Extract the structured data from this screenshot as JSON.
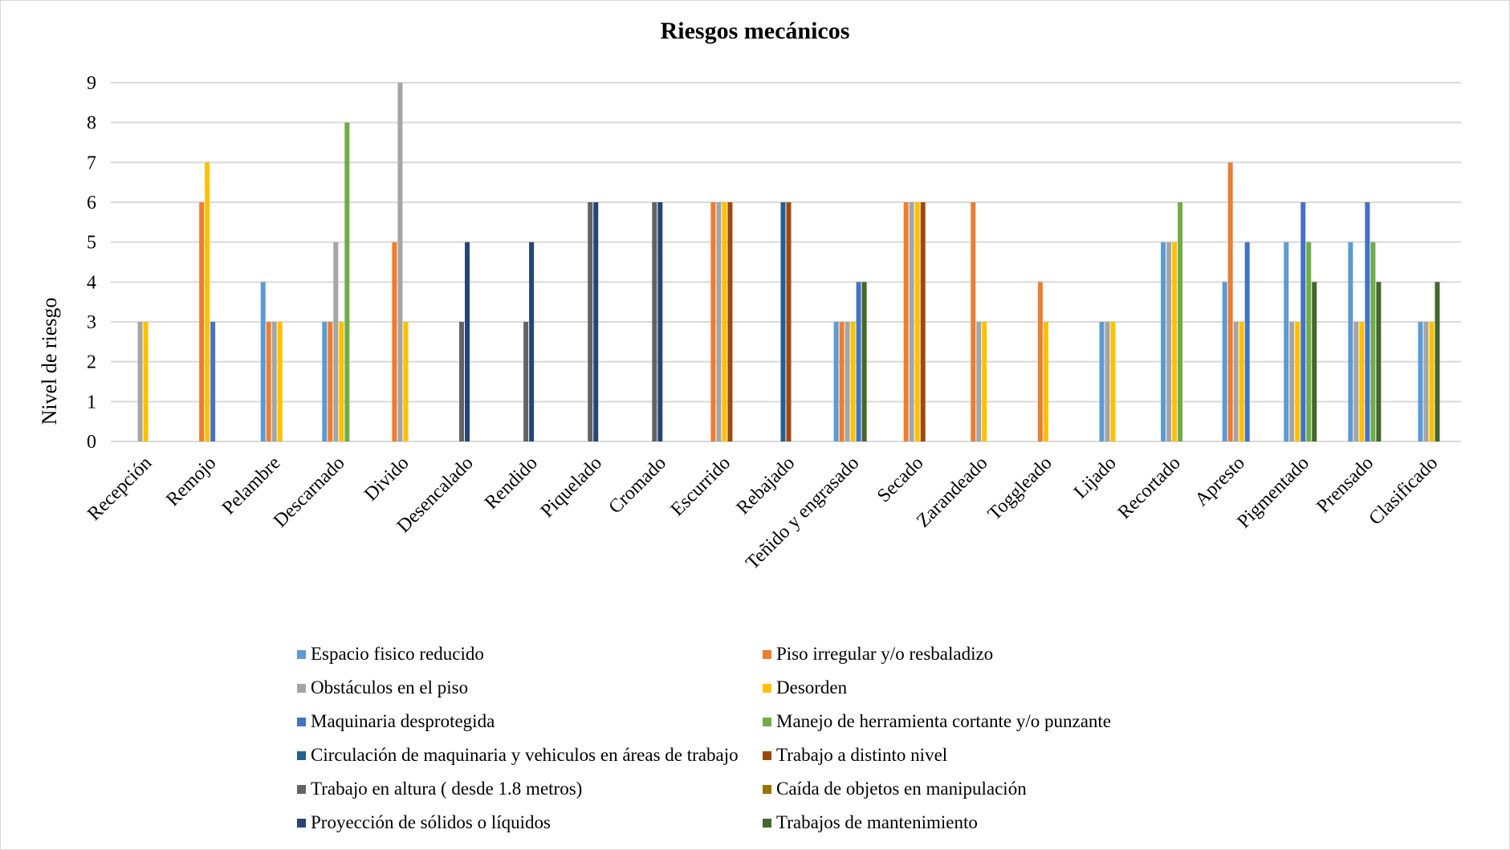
{
  "chart_data": {
    "type": "bar",
    "title": "Riesgos mecánicos",
    "xlabel": "",
    "ylabel": "Nivel de riesgo",
    "ylim": [
      0,
      9
    ],
    "yticks": [
      0,
      1,
      2,
      3,
      4,
      5,
      6,
      7,
      8,
      9
    ],
    "grid": true,
    "legend_position": "bottom",
    "categories": [
      "Recepción",
      "Remojo",
      "Pelambre",
      "Descarnado",
      "Divido",
      "Desencalado",
      "Rendido",
      "Piquelado",
      "Cromado",
      "Escurrido",
      "Rebajado",
      "Teñido y engrasado",
      "Secado",
      "Zarandeado",
      "Toggleado",
      "Lijado",
      "Recortado",
      "Apresto",
      "Pigmentado",
      "Prensado",
      "Clasificado"
    ],
    "series": [
      {
        "name": "Espacio fisico reducido",
        "color": "#5b9bd5",
        "values": [
          0,
          0,
          4,
          3,
          0,
          0,
          0,
          0,
          0,
          0,
          0,
          3,
          0,
          0,
          0,
          3,
          5,
          4,
          5,
          5,
          3
        ]
      },
      {
        "name": "Piso irregular y/o resbaladizo",
        "color": "#ed7d31",
        "values": [
          0,
          6,
          3,
          3,
          5,
          0,
          0,
          0,
          0,
          6,
          0,
          3,
          6,
          6,
          4,
          0,
          0,
          7,
          0,
          0,
          0
        ]
      },
      {
        "name": "Obstáculos en el piso",
        "color": "#a5a5a5",
        "values": [
          3,
          0,
          3,
          5,
          9,
          0,
          0,
          0,
          0,
          6,
          0,
          3,
          6,
          3,
          0,
          3,
          5,
          3,
          3,
          3,
          3
        ]
      },
      {
        "name": "Desorden",
        "color": "#ffc000",
        "values": [
          3,
          7,
          3,
          3,
          3,
          0,
          0,
          0,
          0,
          6,
          0,
          3,
          6,
          3,
          3,
          3,
          5,
          3,
          3,
          3,
          3
        ]
      },
      {
        "name": "Maquinaria desprotegida",
        "color": "#4472c4",
        "values": [
          0,
          3,
          0,
          0,
          0,
          0,
          0,
          0,
          0,
          0,
          0,
          4,
          0,
          0,
          0,
          0,
          0,
          5,
          6,
          6,
          0
        ]
      },
      {
        "name": "Manejo de herramienta cortante y/o punzante",
        "color": "#70ad47",
        "values": [
          0,
          0,
          0,
          8,
          0,
          0,
          0,
          0,
          0,
          0,
          0,
          0,
          0,
          0,
          0,
          0,
          6,
          0,
          5,
          5,
          0
        ]
      },
      {
        "name": "Circulación de maquinaria y vehiculos en áreas de trabajo",
        "color": "#255e91",
        "values": [
          0,
          0,
          0,
          0,
          0,
          0,
          0,
          0,
          0,
          0,
          6,
          0,
          0,
          0,
          0,
          0,
          0,
          0,
          0,
          0,
          0
        ]
      },
      {
        "name": "Trabajo a distinto nivel",
        "color": "#9e480e",
        "values": [
          0,
          0,
          0,
          0,
          0,
          0,
          0,
          0,
          0,
          6,
          6,
          0,
          6,
          0,
          0,
          0,
          0,
          0,
          0,
          0,
          0
        ]
      },
      {
        "name": "Trabajo en altura ( desde 1.8 metros)",
        "color": "#636363",
        "values": [
          0,
          0,
          0,
          0,
          0,
          3,
          3,
          6,
          6,
          0,
          0,
          0,
          0,
          0,
          0,
          0,
          0,
          0,
          0,
          0,
          0
        ]
      },
      {
        "name": "Caída de objetos en manipulación",
        "color": "#997300",
        "values": [
          0,
          0,
          0,
          0,
          0,
          0,
          0,
          0,
          0,
          0,
          0,
          0,
          0,
          0,
          0,
          0,
          0,
          0,
          0,
          0,
          0
        ]
      },
      {
        "name": "Proyección de sólidos o líquidos",
        "color": "#264478",
        "values": [
          0,
          0,
          0,
          0,
          0,
          5,
          5,
          6,
          6,
          0,
          0,
          0,
          0,
          0,
          0,
          0,
          0,
          0,
          0,
          0,
          0
        ]
      },
      {
        "name": "Trabajos de mantenimiento",
        "color": "#43682b",
        "values": [
          0,
          0,
          0,
          0,
          0,
          0,
          0,
          0,
          0,
          0,
          0,
          4,
          0,
          0,
          0,
          0,
          0,
          0,
          4,
          4,
          4
        ]
      }
    ]
  }
}
